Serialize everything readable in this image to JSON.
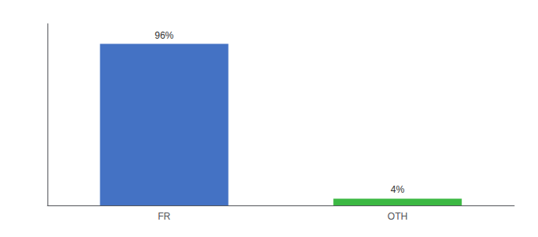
{
  "chart_data": {
    "type": "bar",
    "categories": [
      "FR",
      "OTH"
    ],
    "values": [
      96,
      4
    ],
    "value_labels": [
      "96%",
      "4%"
    ],
    "data_labels": true,
    "colors": [
      "#4472c4",
      "#3cb843"
    ],
    "ylim": [
      0,
      108
    ],
    "grid": false,
    "tick_labels": "x"
  }
}
